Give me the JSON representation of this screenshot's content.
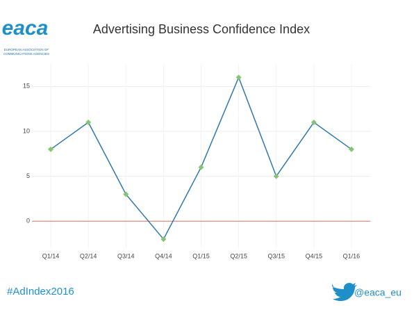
{
  "chart_data": {
    "type": "line",
    "title": "Advertising Business Confidence Index",
    "categories": [
      "Q1/14",
      "Q2/14",
      "Q3/14",
      "Q4/14",
      "Q1/15",
      "Q2/15",
      "Q3/15",
      "Q4/15",
      "Q1/16"
    ],
    "series": [
      {
        "name": "Index",
        "color": "#2e78ad",
        "marker_color": "#86c472",
        "values": [
          8,
          11,
          3,
          -2,
          6,
          16,
          5,
          11,
          8
        ]
      }
    ],
    "ylim": [
      -3,
      17.5
    ],
    "yticks": [
      0,
      5,
      10,
      15
    ],
    "grid": true,
    "hline": 0,
    "hline_color": "#e58a7c"
  },
  "logo": {
    "name": "eaca",
    "subtitle_lines": [
      "EUROPEAN ASSOCIATION OF",
      "COMMUNICATIONS AGENCIES"
    ]
  },
  "footer": {
    "hashtag": "#AdIndex2016",
    "handle": "@eaca_eu"
  }
}
